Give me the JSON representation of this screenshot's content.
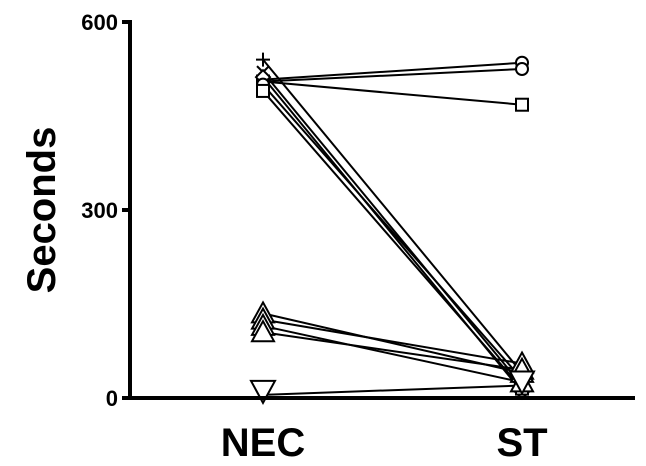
{
  "chart_data": {
    "type": "line",
    "categories": [
      "NEC",
      "ST"
    ],
    "ylabel": "Seconds",
    "ylim": [
      0,
      600
    ],
    "yticks": [
      0,
      300,
      600
    ],
    "grid": false,
    "series": [
      {
        "marker": "circle",
        "values": [
          508,
          535
        ]
      },
      {
        "marker": "circle",
        "values": [
          505,
          525
        ]
      },
      {
        "marker": "square",
        "values": [
          505,
          468
        ]
      },
      {
        "marker": "plus",
        "values": [
          540,
          40
        ]
      },
      {
        "marker": "x",
        "values": [
          520,
          20
        ]
      },
      {
        "marker": "diamond",
        "values": [
          512,
          10
        ]
      },
      {
        "marker": "circle",
        "values": [
          500,
          30
        ]
      },
      {
        "marker": "square",
        "values": [
          490,
          15
        ]
      },
      {
        "marker": "triangle-up",
        "values": [
          135,
          40
        ]
      },
      {
        "marker": "triangle-up",
        "values": [
          125,
          55
        ]
      },
      {
        "marker": "triangle-up",
        "values": [
          115,
          25
        ]
      },
      {
        "marker": "triangle-up",
        "values": [
          105,
          45
        ]
      },
      {
        "marker": "triangle-down",
        "values": [
          5,
          20
        ]
      }
    ]
  }
}
